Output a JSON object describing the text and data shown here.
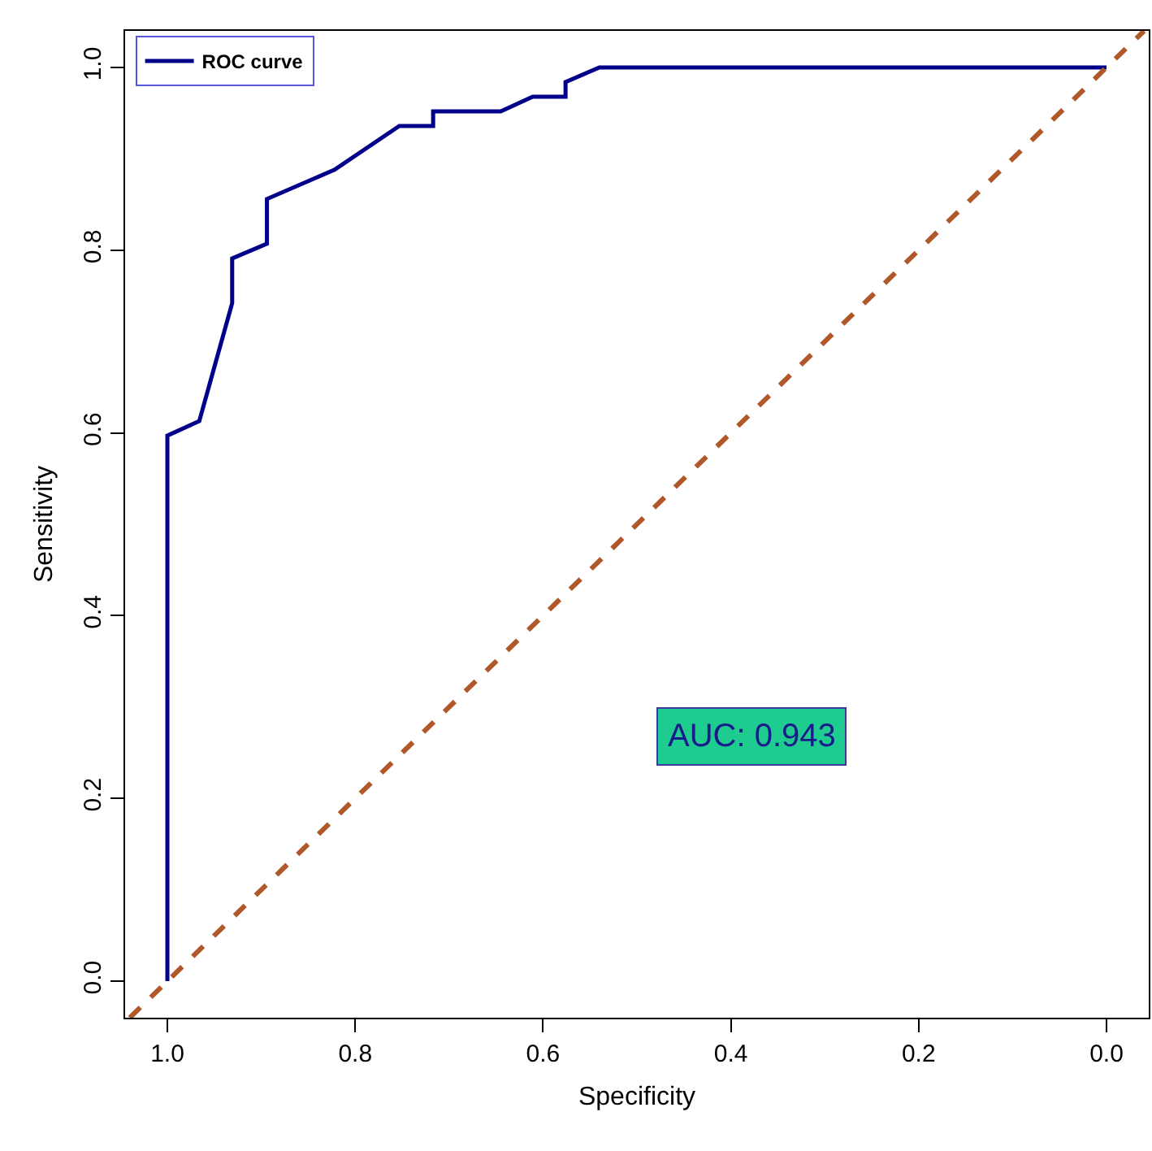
{
  "chart_data": {
    "type": "line",
    "xlabel": "Specificity",
    "ylabel": "Sensitivity",
    "series": [
      {
        "name": "ROC curve",
        "color": "#00008b",
        "line_style": "solid",
        "x": [
          1.0,
          1.0,
          0.966,
          0.931,
          0.931,
          0.894,
          0.894,
          0.822,
          0.753,
          0.717,
          0.717,
          0.645,
          0.611,
          0.576,
          0.576,
          0.54,
          0.0
        ],
        "values": [
          0.0,
          0.597,
          0.613,
          0.742,
          0.791,
          0.807,
          0.856,
          0.888,
          0.936,
          0.936,
          0.952,
          0.952,
          0.968,
          0.968,
          0.984,
          1.0,
          1.0
        ]
      },
      {
        "color": "#b0582a",
        "line_style": "dashed",
        "x": [
          1.04,
          -0.04
        ],
        "values": [
          -0.04,
          1.04
        ]
      }
    ],
    "xlim": [
      1.045,
      -0.045
    ],
    "ylim": [
      -0.04,
      1.04
    ],
    "xticks": [
      {
        "value": 1.0,
        "label": "1.0"
      },
      {
        "value": 0.8,
        "label": "0.8"
      },
      {
        "value": 0.6,
        "label": "0.6"
      },
      {
        "value": 0.4,
        "label": "0.4"
      },
      {
        "value": 0.2,
        "label": "0.2"
      },
      {
        "value": 0.0,
        "label": "0.0"
      }
    ],
    "yticks": [
      {
        "value": 0.0,
        "label": "0.0"
      },
      {
        "value": 0.2,
        "label": "0.2"
      },
      {
        "value": 0.4,
        "label": "0.4"
      },
      {
        "value": 0.6,
        "label": "0.6"
      },
      {
        "value": 0.8,
        "label": "0.8"
      },
      {
        "value": 1.0,
        "label": "1.0"
      }
    ],
    "grid": false,
    "legend": "top left",
    "marker": "none",
    "annotations": [
      "AUC: 0.943"
    ]
  }
}
